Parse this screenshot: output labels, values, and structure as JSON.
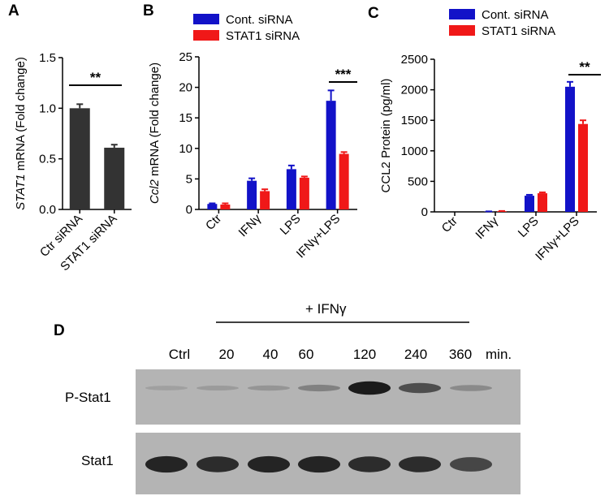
{
  "panel_labels": {
    "a": "A",
    "b": "B",
    "c": "C",
    "d": "D"
  },
  "colors": {
    "control_siRNA": "#1212c8",
    "stat1_siRNA": "#f01818",
    "panelA_ctr": "#333333",
    "panelA_stat1": "#c010c8",
    "axis": "#000000"
  },
  "chart_data": [
    {
      "panel": "A",
      "type": "bar",
      "categories": [
        "Ctr siRNA",
        "STAT1 siRNA"
      ],
      "values": [
        1.0,
        0.61
      ],
      "errors": [
        0.04,
        0.03
      ],
      "ylabel_italic": "STAT1",
      "ylabel_rest": " mRNA (Fold change)",
      "ylim": [
        0,
        1.5
      ],
      "yticks": [
        "0.0",
        "0.5",
        "1.0",
        "1.5"
      ],
      "significance": "**"
    },
    {
      "panel": "B",
      "type": "bar",
      "categories": [
        "Ctr",
        "IFNγ",
        "LPS",
        "IFNγ+LPS"
      ],
      "series": [
        {
          "name": "Cont. siRNA",
          "values": [
            0.9,
            4.7,
            6.6,
            17.8
          ],
          "errors": [
            0.1,
            0.4,
            0.6,
            1.7
          ]
        },
        {
          "name": "STAT1 siRNA",
          "values": [
            0.8,
            3.0,
            5.2,
            9.1
          ],
          "errors": [
            0.2,
            0.3,
            0.2,
            0.3
          ]
        }
      ],
      "ylabel_italic": "Ccl2",
      "ylabel_rest": " mRNA (Fold change)",
      "ylim": [
        0,
        25
      ],
      "yticks": [
        "0",
        "5",
        "10",
        "15",
        "20",
        "25"
      ],
      "significance": "***"
    },
    {
      "panel": "C",
      "type": "bar",
      "categories": [
        "Ctr",
        "IFNγ",
        "LPS",
        "IFNγ+LPS"
      ],
      "series": [
        {
          "name": "Cont. siRNA",
          "values": [
            0,
            5,
            265,
            2050
          ],
          "errors": [
            0,
            3,
            15,
            80
          ]
        },
        {
          "name": "STAT1 siRNA",
          "values": [
            0,
            10,
            305,
            1440
          ],
          "errors": [
            0,
            5,
            15,
            60
          ]
        }
      ],
      "ylabel": "CCL2 Protein (pg/ml)",
      "ylim": [
        0,
        2500
      ],
      "yticks": [
        "0",
        "500",
        "1000",
        "1500",
        "2000",
        "2500"
      ],
      "significance": "**"
    }
  ],
  "blot": {
    "treatment_label": "+ IFNγ",
    "lane_labels": [
      "Ctrl",
      "20",
      "40",
      "60",
      "120",
      "240",
      "360"
    ],
    "time_unit": "min.",
    "rows": [
      {
        "label": "P-Stat1",
        "intensities": [
          0.12,
          0.15,
          0.18,
          0.3,
          0.9,
          0.6,
          0.25
        ]
      },
      {
        "label": "Stat1",
        "intensities": [
          0.85,
          0.8,
          0.85,
          0.85,
          0.8,
          0.8,
          0.65
        ]
      }
    ]
  }
}
